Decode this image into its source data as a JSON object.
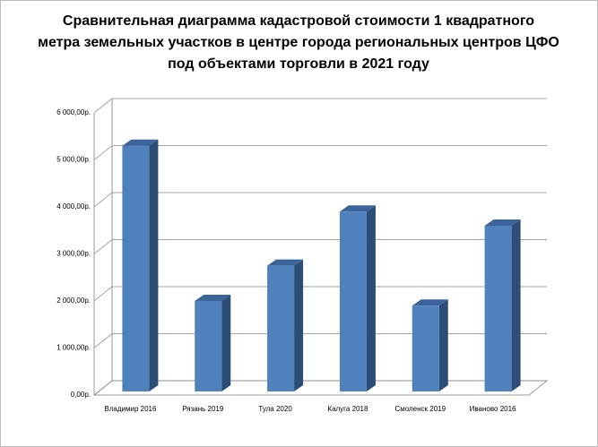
{
  "chart_data": {
    "type": "bar3d",
    "title": "Сравнительная диаграмма  кадастровой стоимости  1 квадратного",
    "title_line2": "метра земельных участков в центре города региональных центров ЦФО",
    "title_line3": "под объектами торговли в 2021 году",
    "categories": [
      "Владимир 2016",
      "Рязань 2019",
      "Тула 2020",
      "Калуга 2018",
      "Смоленск 2019",
      "Иваново 2016"
    ],
    "values": [
      5300,
      2000,
      2750,
      3900,
      1900,
      3600
    ],
    "color": "#4f81bd",
    "ylim": [
      0,
      6000
    ],
    "yticks": [
      {
        "value": 0,
        "label": "0,00р."
      },
      {
        "value": 1000,
        "label": "1 000,00р."
      },
      {
        "value": 2000,
        "label": "2 000,00р."
      },
      {
        "value": 3000,
        "label": "3 000,00р."
      },
      {
        "value": 4000,
        "label": "4 000,00р."
      },
      {
        "value": 5000,
        "label": "5 000,00р."
      },
      {
        "value": 6000,
        "label": "6 000,00р."
      }
    ],
    "grid": true
  }
}
